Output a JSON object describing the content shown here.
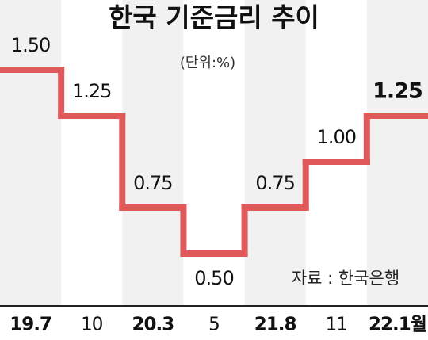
{
  "chart_data": {
    "type": "step",
    "title": "한국 기준금리 추이",
    "subtitle": "(단위:%)",
    "source": "자료 : 한국은행",
    "categories": [
      "19.7",
      "10",
      "20.3",
      "5",
      "21.8",
      "11",
      "22.1월"
    ],
    "values": [
      1.5,
      1.25,
      0.75,
      0.5,
      0.75,
      1.0,
      1.25
    ],
    "value_labels": [
      "1.50",
      "1.25",
      "0.75",
      "0.50",
      "0.75",
      "1.00",
      "1.25"
    ],
    "color": "#e05a5c",
    "ylim": [
      0.25,
      1.75
    ]
  }
}
